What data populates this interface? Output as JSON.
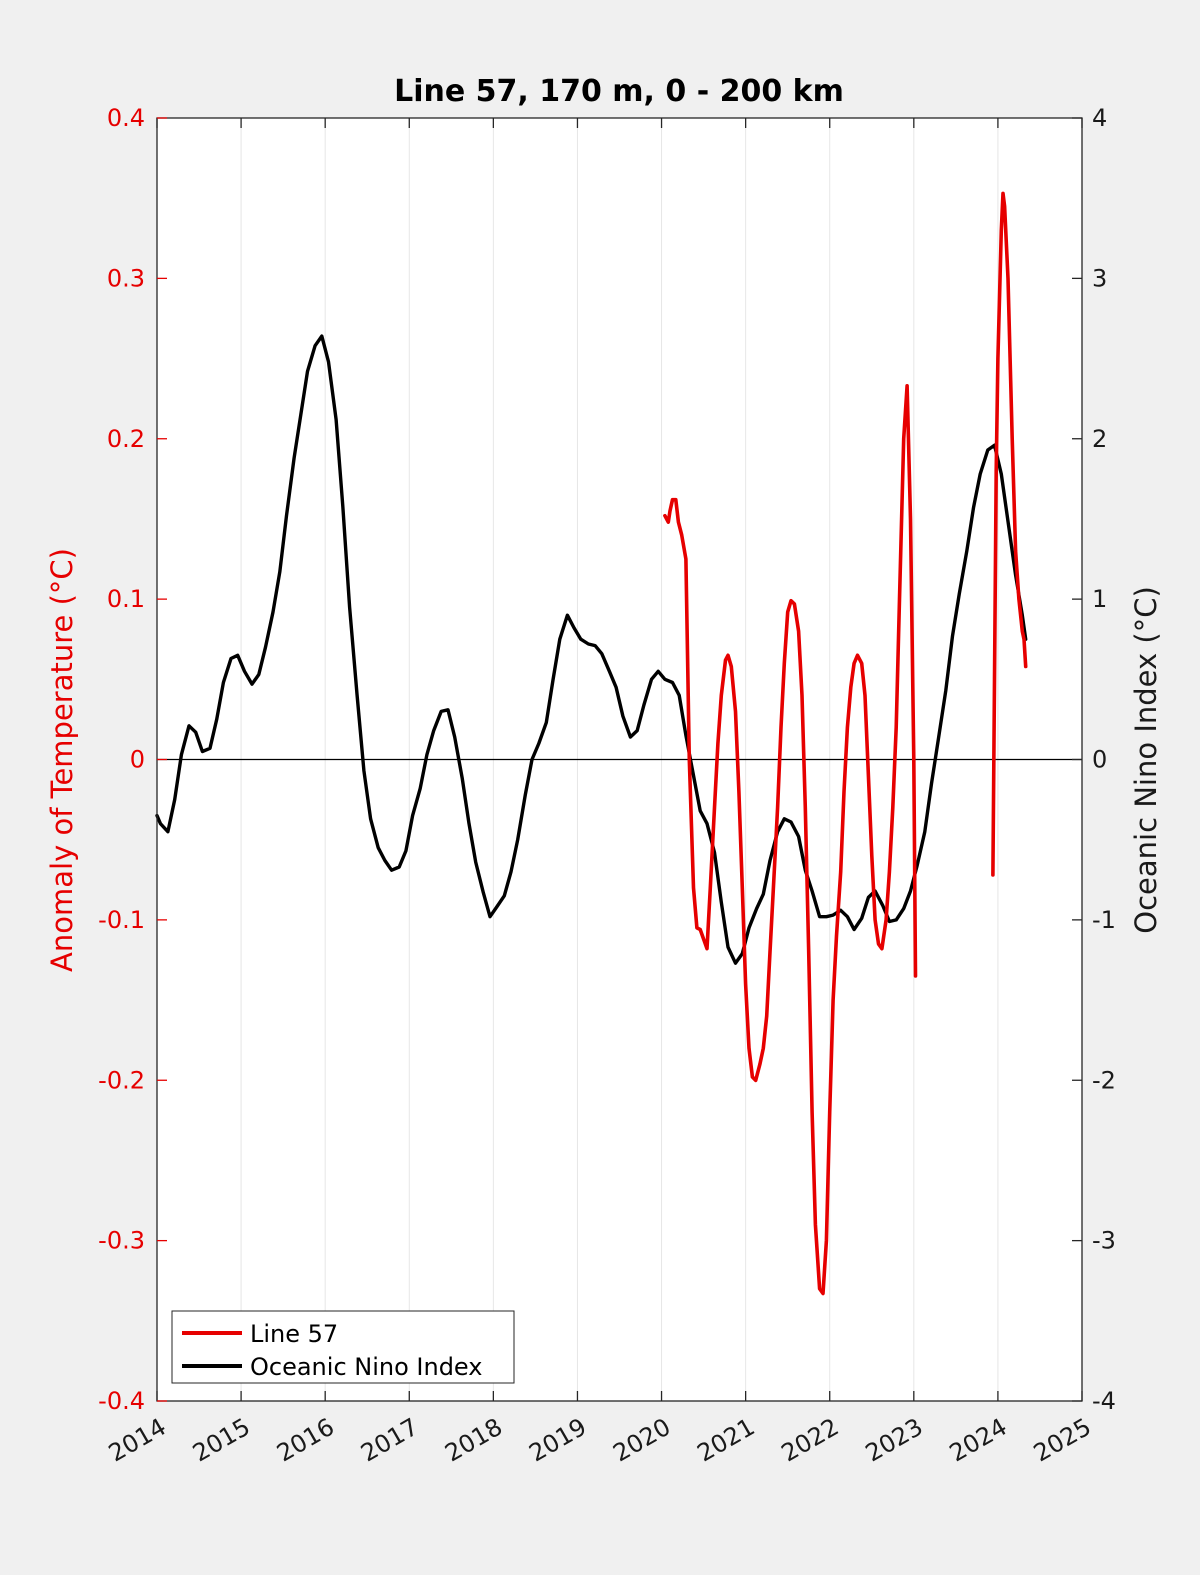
{
  "chart_data": {
    "type": "line",
    "title": "Line 57, 170 m, 0 - 200 km",
    "xlabel": "",
    "ylabel_left": "Anomaly of Temperature (°C)",
    "ylabel_right": "Oceanic Nino Index (°C)",
    "xlim": [
      2014,
      2025
    ],
    "ylim_left": [
      -0.4,
      0.4
    ],
    "ylim_right": [
      -4,
      4
    ],
    "x_ticks": [
      "2014",
      "2015",
      "2016",
      "2017",
      "2018",
      "2019",
      "2020",
      "2021",
      "2022",
      "2023",
      "2024",
      "2025"
    ],
    "y_ticks_left": [
      "0.4",
      "0.3",
      "0.2",
      "0.1",
      "0",
      "-0.1",
      "-0.2",
      "-0.3",
      "-0.4"
    ],
    "y_ticks_right": [
      "4",
      "3",
      "2",
      "1",
      "0",
      "-1",
      "-2",
      "-3",
      "-4"
    ],
    "grid": "vertical lines at each year",
    "zero_line": true,
    "legend_position": "bottom-left",
    "colors": {
      "line57": "#e60000",
      "oni": "#000000",
      "left_axis": "#e60000"
    },
    "series": [
      {
        "name": "Line 57",
        "axis": "left",
        "color": "#e60000",
        "segments": [
          [
            [
              2020.04,
              0.152
            ],
            [
              2020.08,
              0.148
            ],
            [
              2020.1,
              0.155
            ],
            [
              2020.13,
              0.162
            ],
            [
              2020.17,
              0.162
            ],
            [
              2020.2,
              0.148
            ],
            [
              2020.24,
              0.14
            ],
            [
              2020.29,
              0.125
            ],
            [
              2020.33,
              0.0
            ],
            [
              2020.38,
              -0.08
            ],
            [
              2020.42,
              -0.105
            ],
            [
              2020.46,
              -0.106
            ],
            [
              2020.54,
              -0.118
            ],
            [
              2020.58,
              -0.08
            ],
            [
              2020.63,
              -0.03
            ],
            [
              2020.67,
              0.01
            ],
            [
              2020.71,
              0.04
            ],
            [
              2020.76,
              0.062
            ],
            [
              2020.79,
              0.065
            ],
            [
              2020.83,
              0.058
            ],
            [
              2020.88,
              0.03
            ],
            [
              2020.92,
              -0.02
            ],
            [
              2020.96,
              -0.08
            ],
            [
              2021.0,
              -0.14
            ],
            [
              2021.04,
              -0.18
            ],
            [
              2021.08,
              -0.198
            ],
            [
              2021.12,
              -0.2
            ],
            [
              2021.17,
              -0.19
            ],
            [
              2021.21,
              -0.18
            ],
            [
              2021.25,
              -0.16
            ],
            [
              2021.29,
              -0.12
            ],
            [
              2021.33,
              -0.08
            ],
            [
              2021.38,
              -0.03
            ],
            [
              2021.42,
              0.02
            ],
            [
              2021.46,
              0.06
            ],
            [
              2021.5,
              0.092
            ],
            [
              2021.54,
              0.099
            ],
            [
              2021.58,
              0.097
            ],
            [
              2021.63,
              0.08
            ],
            [
              2021.67,
              0.04
            ],
            [
              2021.71,
              -0.03
            ],
            [
              2021.75,
              -0.12
            ],
            [
              2021.79,
              -0.22
            ],
            [
              2021.83,
              -0.29
            ],
            [
              2021.88,
              -0.33
            ],
            [
              2021.92,
              -0.333
            ],
            [
              2021.96,
              -0.3
            ],
            [
              2022.0,
              -0.22
            ],
            [
              2022.04,
              -0.15
            ],
            [
              2022.08,
              -0.11
            ],
            [
              2022.13,
              -0.07
            ],
            [
              2022.17,
              -0.02
            ],
            [
              2022.21,
              0.02
            ],
            [
              2022.25,
              0.045
            ],
            [
              2022.29,
              0.06
            ],
            [
              2022.33,
              0.065
            ],
            [
              2022.38,
              0.06
            ],
            [
              2022.42,
              0.04
            ],
            [
              2022.46,
              -0.01
            ],
            [
              2022.5,
              -0.06
            ],
            [
              2022.54,
              -0.1
            ],
            [
              2022.58,
              -0.115
            ],
            [
              2022.62,
              -0.118
            ],
            [
              2022.67,
              -0.1
            ],
            [
              2022.71,
              -0.07
            ],
            [
              2022.75,
              -0.03
            ],
            [
              2022.79,
              0.02
            ],
            [
              2022.83,
              0.1
            ],
            [
              2022.88,
              0.2
            ],
            [
              2022.92,
              0.233
            ],
            [
              2022.96,
              0.15
            ],
            [
              2023.0,
              0.0
            ],
            [
              2023.02,
              -0.135
            ]
          ],
          [
            [
              2023.94,
              -0.072
            ],
            [
              2023.96,
              0.05
            ],
            [
              2023.98,
              0.18
            ],
            [
              2024.0,
              0.25
            ],
            [
              2024.04,
              0.33
            ],
            [
              2024.06,
              0.353
            ],
            [
              2024.08,
              0.345
            ],
            [
              2024.12,
              0.3
            ],
            [
              2024.17,
              0.2
            ],
            [
              2024.21,
              0.13
            ],
            [
              2024.25,
              0.1
            ],
            [
              2024.29,
              0.08
            ],
            [
              2024.31,
              0.075
            ],
            [
              2024.33,
              0.058
            ]
          ]
        ]
      },
      {
        "name": "Oceanic Nino Index",
        "axis": "right",
        "color": "#000000",
        "points": [
          [
            2014.0,
            -0.35
          ],
          [
            2014.04,
            -0.4
          ],
          [
            2014.13,
            -0.45
          ],
          [
            2014.21,
            -0.25
          ],
          [
            2014.29,
            0.03
          ],
          [
            2014.38,
            0.21
          ],
          [
            2014.46,
            0.17
          ],
          [
            2014.54,
            0.05
          ],
          [
            2014.63,
            0.07
          ],
          [
            2014.71,
            0.25
          ],
          [
            2014.79,
            0.48
          ],
          [
            2014.88,
            0.63
          ],
          [
            2014.96,
            0.65
          ],
          [
            2015.04,
            0.55
          ],
          [
            2015.13,
            0.47
          ],
          [
            2015.21,
            0.53
          ],
          [
            2015.29,
            0.7
          ],
          [
            2015.38,
            0.92
          ],
          [
            2015.46,
            1.17
          ],
          [
            2015.54,
            1.52
          ],
          [
            2015.63,
            1.88
          ],
          [
            2015.71,
            2.15
          ],
          [
            2015.79,
            2.42
          ],
          [
            2015.88,
            2.58
          ],
          [
            2015.96,
            2.64
          ],
          [
            2016.04,
            2.48
          ],
          [
            2016.13,
            2.12
          ],
          [
            2016.21,
            1.58
          ],
          [
            2016.29,
            0.95
          ],
          [
            2016.38,
            0.4
          ],
          [
            2016.46,
            -0.07
          ],
          [
            2016.54,
            -0.37
          ],
          [
            2016.63,
            -0.55
          ],
          [
            2016.71,
            -0.63
          ],
          [
            2016.79,
            -0.69
          ],
          [
            2016.88,
            -0.67
          ],
          [
            2016.96,
            -0.57
          ],
          [
            2017.04,
            -0.35
          ],
          [
            2017.13,
            -0.18
          ],
          [
            2017.21,
            0.03
          ],
          [
            2017.29,
            0.18
          ],
          [
            2017.38,
            0.3
          ],
          [
            2017.46,
            0.31
          ],
          [
            2017.54,
            0.14
          ],
          [
            2017.63,
            -0.12
          ],
          [
            2017.71,
            -0.4
          ],
          [
            2017.79,
            -0.64
          ],
          [
            2017.88,
            -0.83
          ],
          [
            2017.96,
            -0.98
          ],
          [
            2018.04,
            -0.92
          ],
          [
            2018.13,
            -0.85
          ],
          [
            2018.21,
            -0.7
          ],
          [
            2018.29,
            -0.5
          ],
          [
            2018.38,
            -0.22
          ],
          [
            2018.46,
            0.0
          ],
          [
            2018.54,
            0.1
          ],
          [
            2018.63,
            0.23
          ],
          [
            2018.71,
            0.5
          ],
          [
            2018.79,
            0.75
          ],
          [
            2018.88,
            0.9
          ],
          [
            2018.96,
            0.82
          ],
          [
            2019.04,
            0.75
          ],
          [
            2019.13,
            0.72
          ],
          [
            2019.21,
            0.71
          ],
          [
            2019.29,
            0.66
          ],
          [
            2019.38,
            0.55
          ],
          [
            2019.46,
            0.45
          ],
          [
            2019.54,
            0.27
          ],
          [
            2019.63,
            0.14
          ],
          [
            2019.71,
            0.18
          ],
          [
            2019.79,
            0.34
          ],
          [
            2019.88,
            0.5
          ],
          [
            2019.96,
            0.55
          ],
          [
            2020.04,
            0.5
          ],
          [
            2020.13,
            0.48
          ],
          [
            2020.21,
            0.4
          ],
          [
            2020.29,
            0.15
          ],
          [
            2020.38,
            -0.1
          ],
          [
            2020.46,
            -0.32
          ],
          [
            2020.54,
            -0.4
          ],
          [
            2020.63,
            -0.58
          ],
          [
            2020.71,
            -0.89
          ],
          [
            2020.79,
            -1.17
          ],
          [
            2020.88,
            -1.27
          ],
          [
            2020.96,
            -1.21
          ],
          [
            2021.04,
            -1.05
          ],
          [
            2021.13,
            -0.93
          ],
          [
            2021.21,
            -0.84
          ],
          [
            2021.29,
            -0.63
          ],
          [
            2021.38,
            -0.45
          ],
          [
            2021.46,
            -0.37
          ],
          [
            2021.54,
            -0.39
          ],
          [
            2021.63,
            -0.48
          ],
          [
            2021.71,
            -0.69
          ],
          [
            2021.79,
            -0.82
          ],
          [
            2021.88,
            -0.98
          ],
          [
            2021.96,
            -0.98
          ],
          [
            2022.04,
            -0.97
          ],
          [
            2022.13,
            -0.94
          ],
          [
            2022.21,
            -0.98
          ],
          [
            2022.29,
            -1.06
          ],
          [
            2022.38,
            -0.99
          ],
          [
            2022.46,
            -0.86
          ],
          [
            2022.54,
            -0.82
          ],
          [
            2022.63,
            -0.91
          ],
          [
            2022.71,
            -1.01
          ],
          [
            2022.79,
            -1.0
          ],
          [
            2022.88,
            -0.93
          ],
          [
            2022.96,
            -0.82
          ],
          [
            2023.04,
            -0.66
          ],
          [
            2023.13,
            -0.45
          ],
          [
            2023.21,
            -0.15
          ],
          [
            2023.29,
            0.12
          ],
          [
            2023.38,
            0.43
          ],
          [
            2023.46,
            0.77
          ],
          [
            2023.54,
            1.03
          ],
          [
            2023.63,
            1.3
          ],
          [
            2023.71,
            1.57
          ],
          [
            2023.79,
            1.78
          ],
          [
            2023.88,
            1.93
          ],
          [
            2023.96,
            1.96
          ],
          [
            2024.04,
            1.78
          ],
          [
            2024.13,
            1.45
          ],
          [
            2024.21,
            1.15
          ],
          [
            2024.29,
            0.9
          ],
          [
            2024.33,
            0.75
          ]
        ]
      }
    ]
  }
}
